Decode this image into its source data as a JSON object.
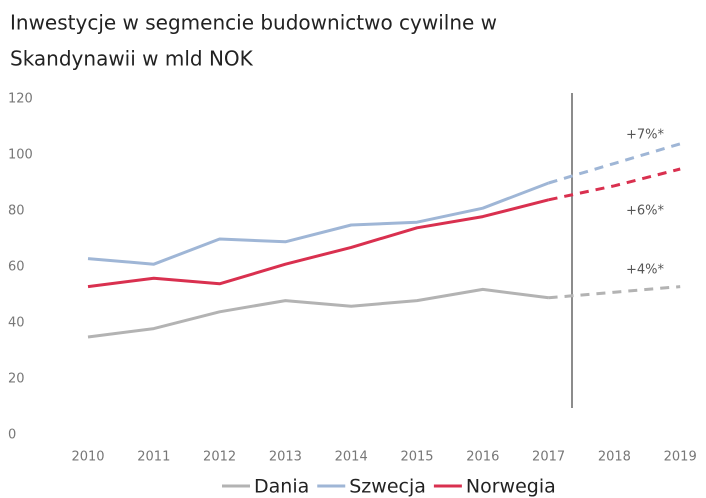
{
  "chart_data": {
    "type": "line",
    "title_lines": [
      "Inwestycje w segmencie budownictwo cywilne w",
      "Skandynawii w mld NOK"
    ],
    "categories": [
      "2010",
      "2011",
      "2012",
      "2013",
      "2014",
      "2015",
      "2016",
      "2017",
      "2018",
      "2019"
    ],
    "dashed_from": "2017",
    "series": [
      {
        "name": "Dania",
        "color": "#b3b3b3",
        "values": [
          35,
          38,
          44,
          48,
          46,
          48,
          52,
          49,
          51,
          53
        ]
      },
      {
        "name": "Szwecja",
        "color": "#9fb6d6",
        "values": [
          63,
          61,
          70,
          69,
          75,
          76,
          81,
          90,
          97,
          104
        ]
      },
      {
        "name": "Norwegia",
        "color": "#d9304f",
        "values": [
          53,
          56,
          54,
          61,
          67,
          74,
          78,
          84,
          89,
          95
        ]
      }
    ],
    "annotations": [
      "+7%*",
      "+6%*",
      "+4%*"
    ],
    "ylim": [
      0,
      120
    ],
    "yticks": [
      0,
      20,
      40,
      60,
      80,
      100,
      120
    ],
    "grid": false
  }
}
